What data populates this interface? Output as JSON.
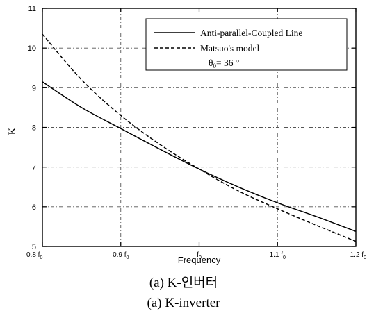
{
  "chart_data": {
    "type": "line",
    "xlabel": "Frequency",
    "ylabel": "K",
    "x_ticks": [
      {
        "value": 0.8,
        "label": "0.8 f",
        "sub": "0"
      },
      {
        "value": 0.9,
        "label": "0.9 f",
        "sub": "0"
      },
      {
        "value": 1.0,
        "label": "f",
        "sub": "0"
      },
      {
        "value": 1.1,
        "label": "1.1 f",
        "sub": "0"
      },
      {
        "value": 1.2,
        "label": "1.2 f",
        "sub": "0"
      }
    ],
    "y_ticks": [
      5,
      6,
      7,
      8,
      9,
      10,
      11
    ],
    "xlim": [
      0.8,
      1.2
    ],
    "ylim": [
      5,
      11
    ],
    "grid": true,
    "legend_position": "top-right",
    "series": [
      {
        "name": "Anti-parallel-Coupled Line",
        "style": "solid",
        "x": [
          0.8,
          0.85,
          0.9,
          0.95,
          1.0,
          1.05,
          1.1,
          1.15,
          1.2
        ],
        "values": [
          9.15,
          8.5,
          7.97,
          7.45,
          6.95,
          6.5,
          6.1,
          5.75,
          5.38
        ]
      },
      {
        "name": "Matsuo's model",
        "style": "dashed",
        "x": [
          0.8,
          0.85,
          0.9,
          0.95,
          1.0,
          1.05,
          1.1,
          1.15,
          1.2
        ],
        "values": [
          10.35,
          9.2,
          8.3,
          7.57,
          6.95,
          6.4,
          5.95,
          5.53,
          5.13
        ]
      }
    ],
    "legend_note": {
      "prefix": "θ",
      "sub": "0",
      "suffix": "= 36 °"
    }
  },
  "captions": {
    "korean": "(a) K-인버터",
    "english": "(a) K-inverter"
  },
  "colors": {
    "line": "#000000",
    "grid": "#555555",
    "background": "#ffffff"
  }
}
